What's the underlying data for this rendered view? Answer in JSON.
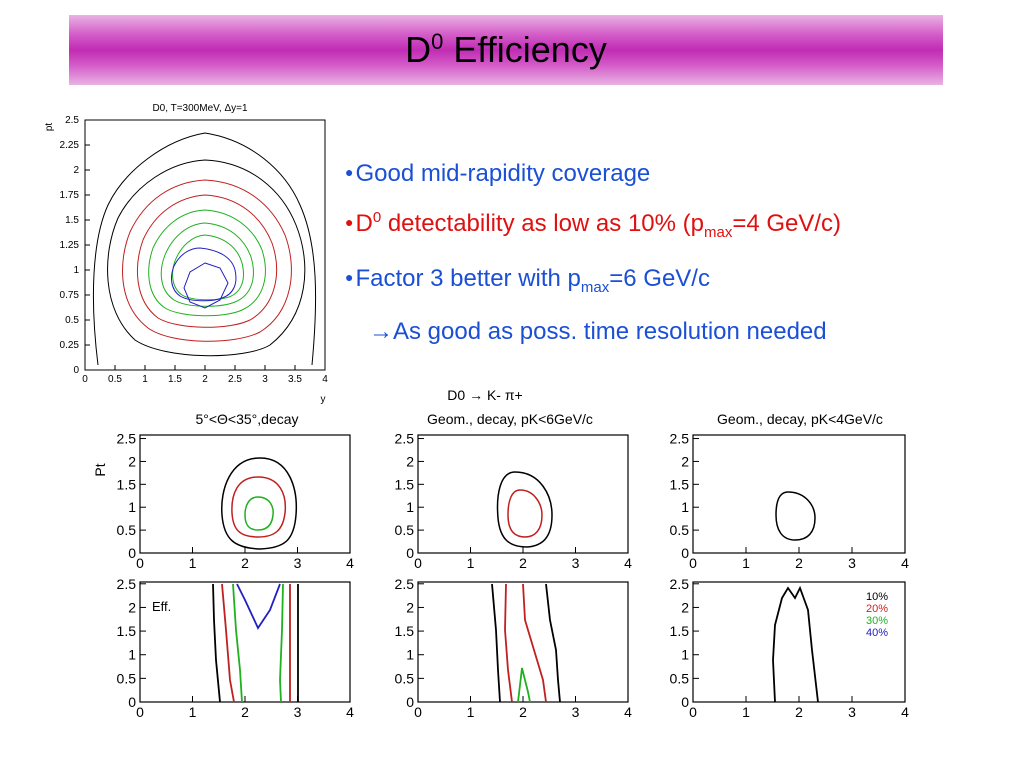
{
  "slide": {
    "title_main": "D",
    "title_sup": "0",
    "title_rest": " Efficiency"
  },
  "bullets": [
    {
      "text": "Good mid-rapidity coverage",
      "color": "#1a4fd6"
    },
    {
      "pre": "D",
      "sup": "0",
      "post": " detectability as low as 10% (p",
      "sub": "max",
      "tail": "=4 GeV/c)",
      "color": "#e01010"
    },
    {
      "pre": "Factor 3 better with p",
      "sub": "max",
      "tail": "=6 GeV/c",
      "color": "#1a4fd6"
    },
    {
      "arrow": "→",
      "text": "As good as poss. time resolution needed",
      "color": "#1a4fd6"
    }
  ],
  "chart_data": [
    {
      "type": "contour",
      "title": "D0, T=300MeV, Δy=1",
      "xlabel": "y",
      "ylabel": "pt",
      "x_ticks": [
        "0",
        "0.5",
        "1",
        "1.5",
        "2",
        "2.5",
        "3",
        "3.5",
        "4"
      ],
      "y_ticks": [
        "0",
        "0.25",
        "0.5",
        "0.75",
        "1",
        "1.25",
        "1.5",
        "1.75",
        "2",
        "2.25",
        "2.5"
      ],
      "xlim": [
        0,
        4
      ],
      "ylim": [
        0,
        2.5
      ],
      "contour_colors": [
        "#000000",
        "#c02020",
        "#20b020",
        "#2020c0"
      ]
    },
    {
      "type": "contour",
      "group_title": "D0 → K- π+",
      "title": "5°<Θ<35°,decay",
      "ylabel": "Pt",
      "x_ticks": [
        "0",
        "1",
        "2",
        "3",
        "4"
      ],
      "y_ticks": [
        "0",
        "0.5",
        "1",
        "1.5",
        "2",
        "2.5"
      ],
      "xlim": [
        0,
        4
      ],
      "ylim": [
        0,
        2.5
      ]
    },
    {
      "type": "contour",
      "title": "Geom., decay, pK<6GeV/c",
      "x_ticks": [
        "0",
        "1",
        "2",
        "3",
        "4"
      ],
      "y_ticks": [
        "0",
        "0.5",
        "1",
        "1.5",
        "2",
        "2.5"
      ],
      "xlim": [
        0,
        4
      ],
      "ylim": [
        0,
        2.5
      ]
    },
    {
      "type": "contour",
      "title": "Geom., decay, pK<4GeV/c",
      "x_ticks": [
        "0",
        "1",
        "2",
        "3",
        "4"
      ],
      "y_ticks": [
        "0",
        "0.5",
        "1",
        "1.5",
        "2",
        "2.5"
      ],
      "xlim": [
        0,
        4
      ],
      "ylim": [
        0,
        2.5
      ]
    },
    {
      "type": "contour",
      "annotation": "Eff.",
      "x_ticks": [
        "0",
        "1",
        "2",
        "3",
        "4"
      ],
      "y_ticks": [
        "0",
        "0.5",
        "1",
        "1.5",
        "2",
        "2.5"
      ],
      "xlim": [
        0,
        4
      ],
      "ylim": [
        0,
        2.5
      ]
    },
    {
      "type": "contour",
      "x_ticks": [
        "0",
        "1",
        "2",
        "3",
        "4"
      ],
      "y_ticks": [
        "0",
        "0.5",
        "1",
        "1.5",
        "2",
        "2.5"
      ],
      "xlim": [
        0,
        4
      ],
      "ylim": [
        0,
        2.5
      ]
    },
    {
      "type": "contour",
      "legend": [
        {
          "label": "10%",
          "color": "#000000"
        },
        {
          "label": "20%",
          "color": "#d02020"
        },
        {
          "label": "30%",
          "color": "#20b020"
        },
        {
          "label": "40%",
          "color": "#2020c0"
        }
      ],
      "legend_position": "top-right",
      "x_ticks": [
        "0",
        "1",
        "2",
        "3",
        "4"
      ],
      "y_ticks": [
        "0",
        "0.5",
        "1",
        "1.5",
        "2",
        "2.5"
      ],
      "xlim": [
        0,
        4
      ],
      "ylim": [
        0,
        2.5
      ]
    }
  ]
}
